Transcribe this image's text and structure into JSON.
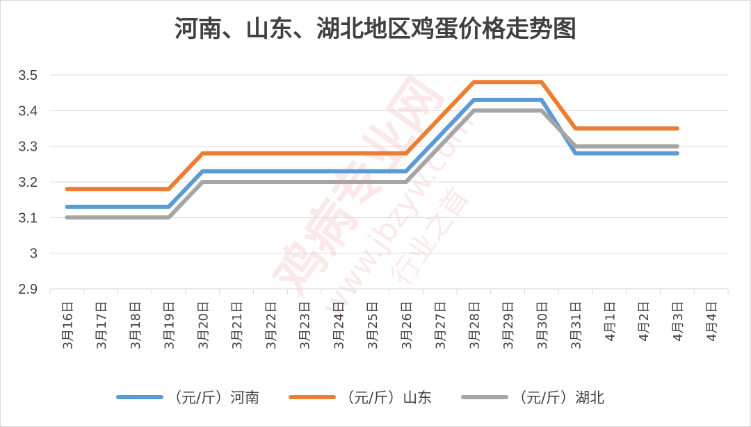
{
  "chart_data": {
    "type": "line",
    "title": "河南、山东、湖北地区鸡蛋价格走势图",
    "categories": [
      "3月16日",
      "3月17日",
      "3月18日",
      "3月19日",
      "3月20日",
      "3月21日",
      "3月22日",
      "3月23日",
      "3月24日",
      "3月25日",
      "3月26日",
      "3月27日",
      "3月28日",
      "3月29日",
      "3月30日",
      "3月31日",
      "4月1日",
      "4月2日",
      "4月3日",
      "4月4日"
    ],
    "ylim": [
      2.9,
      3.5
    ],
    "yticks": [
      "2.9",
      "3",
      "3.1",
      "3.2",
      "3.3",
      "3.4",
      "3.5"
    ],
    "grid": true,
    "legend_position": "bottom",
    "series": [
      {
        "name": "（元/斤）河南",
        "color": "#5b9bd5",
        "points": [
          [
            0,
            3.13
          ],
          [
            3,
            3.13
          ],
          [
            4,
            3.23
          ],
          [
            10,
            3.23
          ],
          [
            12,
            3.43
          ],
          [
            14,
            3.43
          ],
          [
            15,
            3.28
          ],
          [
            18,
            3.28
          ]
        ]
      },
      {
        "name": "（元/斤）山东",
        "color": "#ed7d31",
        "points": [
          [
            0,
            3.18
          ],
          [
            3,
            3.18
          ],
          [
            4,
            3.28
          ],
          [
            10,
            3.28
          ],
          [
            12,
            3.48
          ],
          [
            14,
            3.48
          ],
          [
            15,
            3.35
          ],
          [
            18,
            3.35
          ]
        ]
      },
      {
        "name": "（元/斤）湖北",
        "color": "#a5a5a5",
        "points": [
          [
            0,
            3.1
          ],
          [
            3,
            3.1
          ],
          [
            4,
            3.2
          ],
          [
            10,
            3.2
          ],
          [
            12,
            3.4
          ],
          [
            14,
            3.4
          ],
          [
            15,
            3.3
          ],
          [
            18,
            3.3
          ]
        ]
      }
    ]
  },
  "watermark": {
    "brand": "鸡病专业网",
    "url": "www.jbzyw.com",
    "slogan": "行业之首"
  }
}
